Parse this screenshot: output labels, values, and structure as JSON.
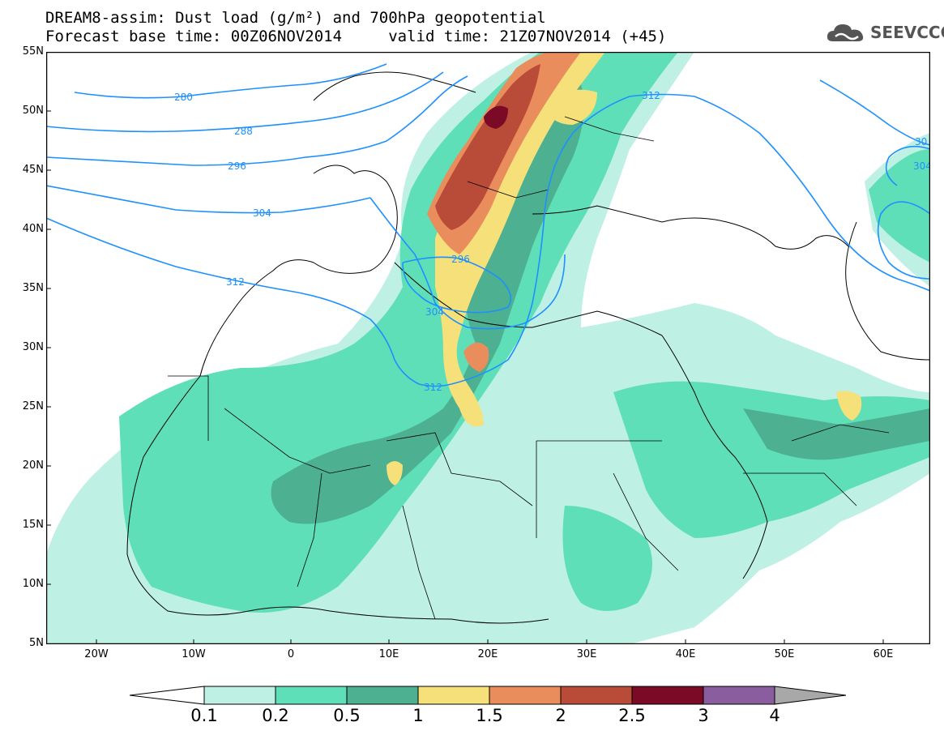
{
  "header": {
    "line1": "DREAM8-assim: Dust load (g/m²) and 700hPa geopotential",
    "line2": "Forecast base time: 00Z06NOV2014     valid time: 21Z07NOV2014 (+45)"
  },
  "logo": {
    "text": "SEEVCCC",
    "icon": "cloud-logo-icon"
  },
  "map": {
    "lat_labels": [
      "55N",
      "50N",
      "45N",
      "40N",
      "35N",
      "30N",
      "25N",
      "20N",
      "15N",
      "10N",
      "5N"
    ],
    "lon_labels": [
      "20W",
      "10W",
      "0",
      "10E",
      "20E",
      "30E",
      "40E",
      "50E",
      "60E"
    ],
    "contour_labels": [
      "280",
      "288",
      "296",
      "304",
      "312",
      "312",
      "296",
      "304",
      "312",
      "30",
      "304"
    ],
    "contour_color": "#1E90FF"
  },
  "colorbar": {
    "labels": [
      "0.1",
      "0.2",
      "0.5",
      "1",
      "1.5",
      "2",
      "2.5",
      "3",
      "4"
    ],
    "colors": [
      "#ffffff",
      "#bff0e4",
      "#5fdfb8",
      "#4db090",
      "#f5e07a",
      "#ea8d5c",
      "#b84c38",
      "#7a0a25",
      "#8a5e9e",
      "#a8a8a8"
    ]
  }
}
